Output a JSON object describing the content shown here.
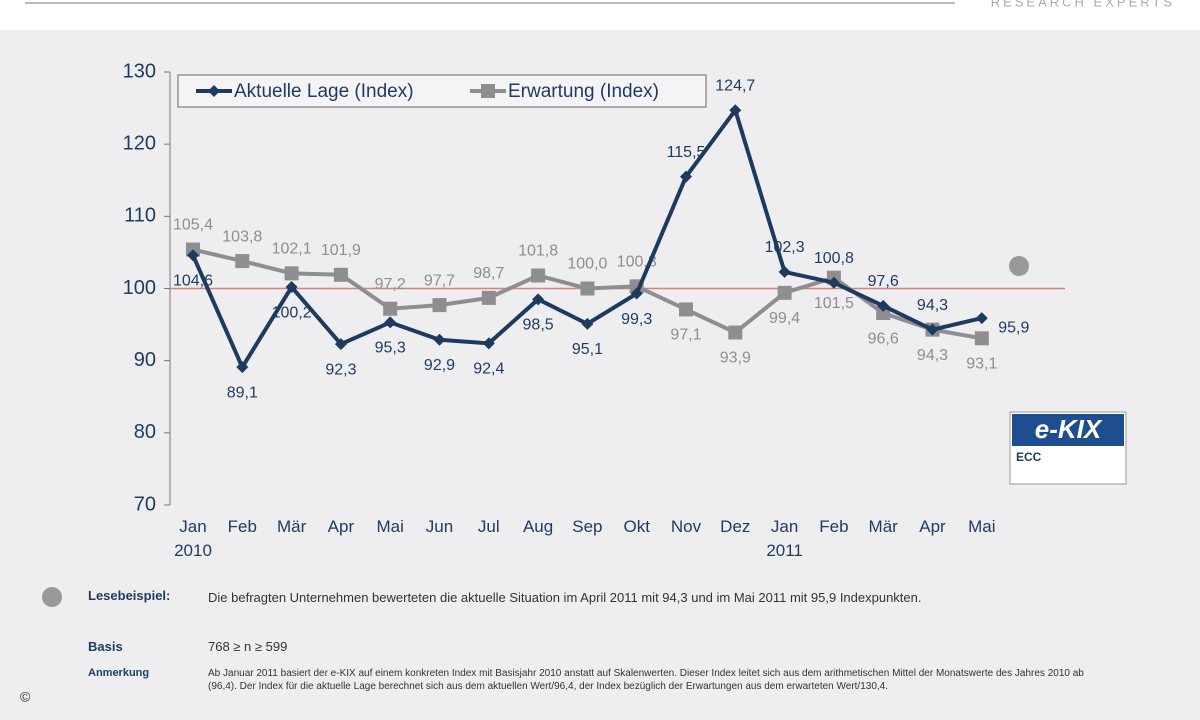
{
  "header": {
    "brand": "RESEARCH EXPERTS"
  },
  "chart_data": {
    "type": "line",
    "categories": [
      "Jan 2010",
      "Feb",
      "Mär",
      "Apr",
      "Mai",
      "Jun",
      "Jul",
      "Aug",
      "Sep",
      "Okt",
      "Nov",
      "Dez",
      "Jan 2011",
      "Feb",
      "Mär",
      "Apr",
      "Mai"
    ],
    "series": [
      {
        "name": "Aktuelle Lage (Index)",
        "color": "#1e3a5f",
        "marker": "diamond",
        "values": [
          104.6,
          89.1,
          100.2,
          92.3,
          95.3,
          92.9,
          92.4,
          98.5,
          95.1,
          99.3,
          115.5,
          124.7,
          102.3,
          100.8,
          97.6,
          94.3,
          95.9
        ],
        "value_labels": [
          "104,6",
          "89,1",
          "100,2",
          "92,3",
          "95,3",
          "92,9",
          "92,4",
          "98,5",
          "95,1",
          "99,3",
          "115,5",
          "124,7",
          "102,3",
          "100,8",
          "97,6",
          "94,3",
          "95,9"
        ]
      },
      {
        "name": "Erwartung (Index)",
        "color": "#8e8e90",
        "marker": "square",
        "values": [
          105.4,
          103.8,
          102.1,
          101.9,
          97.2,
          97.7,
          98.7,
          101.8,
          100.0,
          100.3,
          97.1,
          93.9,
          99.4,
          101.5,
          96.6,
          94.3,
          93.1
        ],
        "value_labels": [
          "105,4",
          "103,8",
          "102,1",
          "101,9",
          "97,2",
          "97,7",
          "98,7",
          "101,8",
          "100,0",
          "100,3",
          "97,1",
          "93,9",
          "99,4",
          "101,5",
          "96,6",
          "94,3",
          "93,1"
        ]
      }
    ],
    "ylim": [
      70,
      130
    ],
    "yticks": [
      70,
      80,
      90,
      100,
      110,
      120,
      130
    ],
    "reference_line": 100,
    "reference_color": "#d98080",
    "grid": false,
    "legend": "top-left"
  },
  "logo": {
    "title": "e-KIX",
    "subtitle": "ECC"
  },
  "notes": {
    "example_label": "Lesebeispiel:",
    "example_text": "Die befragten Unternehmen bewerteten die aktuelle Situation im April 2011 mit 94,3 und im Mai 2011 mit 95,9 Indexpunkten.",
    "basis_label": "Basis",
    "basis_text": "768 ≥ n ≥ 599",
    "remark_label": "Anmerkung",
    "remark_text": "Ab Januar 2011 basiert der e-KIX auf einem konkreten Index mit Basisjahr 2010 anstatt auf Skalenwerten. Dieser Index leitet sich aus dem arithmetischen Mittel der Monatswerte des Jahres 2010 ab (96,4). Der Index für die aktuelle Lage berechnet sich aus dem aktuellen Wert/96,4, der Index bezüglich der Erwartungen aus dem erwarteten Wert/130,4."
  },
  "copyright": "©"
}
